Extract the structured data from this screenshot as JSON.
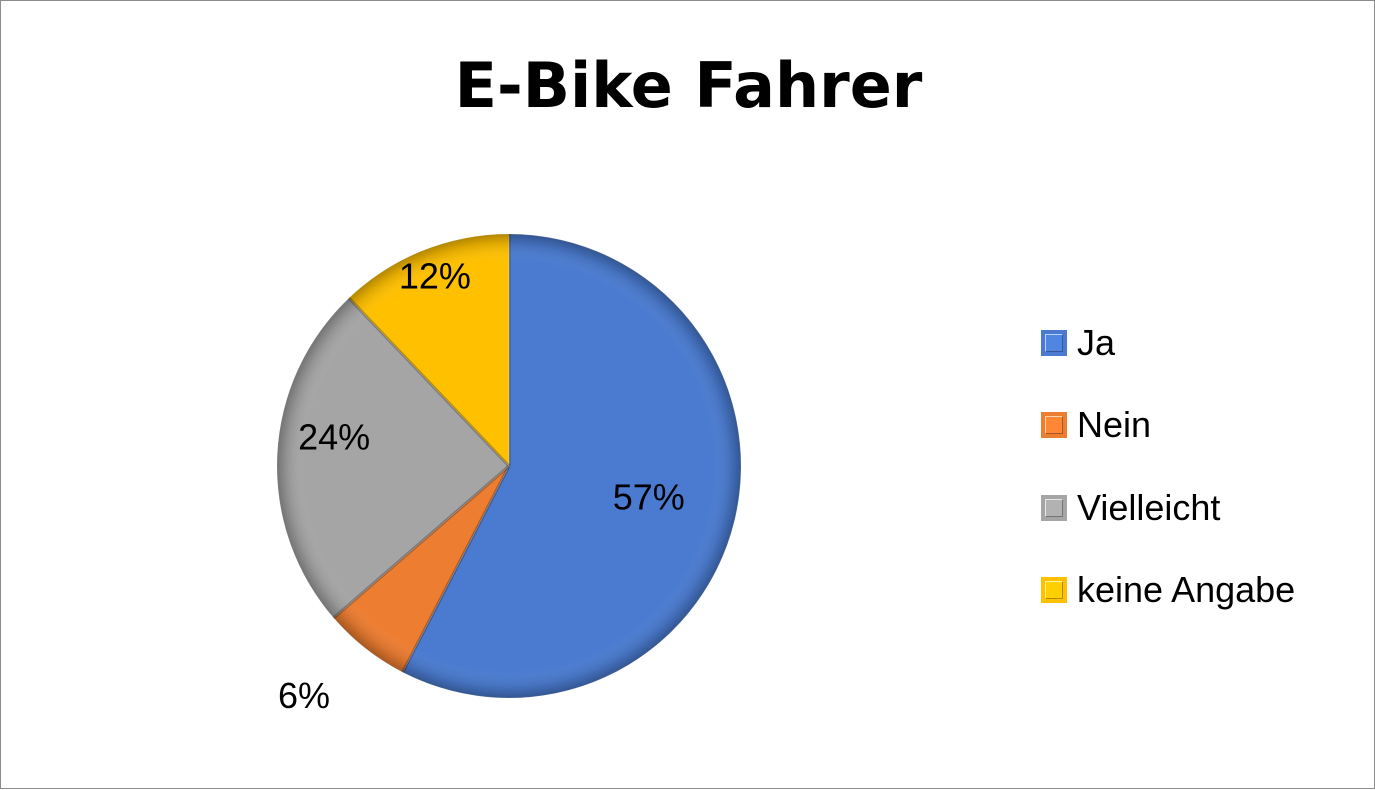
{
  "chart_data": {
    "type": "pie",
    "title": "E-Bike Fahrer",
    "categories": [
      "Ja",
      "Nein",
      "Vielleicht",
      "keine Angabe"
    ],
    "values": [
      57,
      6,
      24,
      12
    ],
    "data_labels": [
      "57%",
      "6%",
      "24%",
      "12%"
    ],
    "colors": [
      "#4a7bd0",
      "#ed7d31",
      "#a5a5a5",
      "#ffc000"
    ],
    "legend_position": "right",
    "start_angle": "12 o'clock, clockwise"
  }
}
